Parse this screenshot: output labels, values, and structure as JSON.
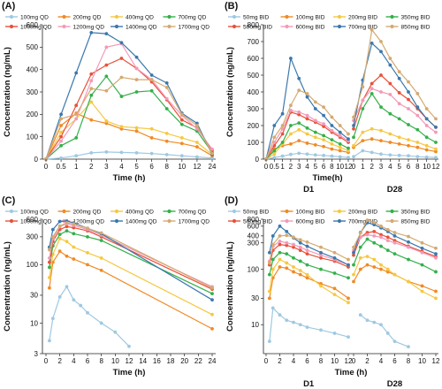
{
  "chart_data": [
    {
      "panel_label": "(A)",
      "type": "line",
      "scale": "linear",
      "xlabel": "Time (h)",
      "ylabel": "Concentration (ng/mL)",
      "ylim": [
        0,
        600
      ],
      "yticks": [
        0,
        100,
        200,
        300,
        400,
        500,
        600
      ],
      "xtick_labels": [
        "0",
        "0.5",
        "1",
        "2",
        "3",
        "4",
        "5",
        "6",
        "8",
        "10",
        "12",
        "24"
      ],
      "x_positions": [
        0,
        0.5,
        1,
        2,
        3,
        4,
        5,
        6,
        8,
        10,
        12,
        24
      ],
      "legend_columns": 4,
      "series": [
        {
          "name": "100mg QD",
          "color": "#9ec9e2",
          "values": [
            0,
            5,
            15,
            28,
            32,
            30,
            28,
            25,
            20,
            15,
            10,
            5
          ]
        },
        {
          "name": "200mg QD",
          "color": "#f08a24",
          "values": [
            0,
            150,
            205,
            175,
            160,
            135,
            125,
            95,
            80,
            70,
            55,
            15
          ]
        },
        {
          "name": "400mg QD",
          "color": "#f5c842",
          "values": [
            0,
            120,
            180,
            255,
            170,
            145,
            140,
            135,
            115,
            95,
            75,
            20
          ]
        },
        {
          "name": "700mg QD",
          "color": "#34b04a",
          "values": [
            0,
            60,
            95,
            285,
            370,
            280,
            300,
            305,
            225,
            155,
            125,
            30
          ]
        },
        {
          "name": "1000mg QD",
          "color": "#e8513a",
          "values": [
            0,
            100,
            240,
            380,
            420,
            450,
            405,
            345,
            265,
            175,
            140,
            40
          ]
        },
        {
          "name": "1200mg QD",
          "color": "#f29ab8",
          "values": [
            0,
            80,
            180,
            350,
            500,
            515,
            405,
            355,
            270,
            195,
            135,
            45
          ]
        },
        {
          "name": "1400mg QD",
          "color": "#3b78ad",
          "values": [
            0,
            200,
            385,
            565,
            560,
            520,
            455,
            375,
            340,
            205,
            160,
            20
          ]
        },
        {
          "name": "1700mg QD",
          "color": "#d4aa70",
          "values": [
            0,
            180,
            200,
            315,
            305,
            365,
            355,
            355,
            320,
            200,
            150,
            25
          ]
        }
      ]
    },
    {
      "panel_label": "(B)",
      "type": "line",
      "scale": "linear",
      "xlabel": "Time(h)",
      "ylabel": "Concentration (ng/mL)",
      "ylim": [
        0,
        800
      ],
      "yticks": [
        0,
        100,
        200,
        300,
        400,
        500,
        600,
        700,
        800
      ],
      "group_labels": [
        "D1",
        "D28"
      ],
      "xtick_labels": [
        "0",
        "0.5",
        "1",
        "2",
        "3",
        "4",
        "5",
        "6",
        "8",
        "10",
        "12",
        "0",
        "1",
        "2",
        "3",
        "4",
        "5",
        "6",
        "8",
        "10",
        "12"
      ],
      "legend_columns": 4,
      "series": [
        {
          "name": "50mg BID",
          "color": "#9ec9e2",
          "d1": [
            0,
            10,
            18,
            28,
            35,
            30,
            25,
            22,
            18,
            14,
            10
          ],
          "d28": [
            15,
            50,
            40,
            30,
            25,
            22,
            20,
            15,
            12,
            10
          ]
        },
        {
          "name": "100mg BID",
          "color": "#f08a24",
          "d1": [
            0,
            60,
            80,
            90,
            110,
            95,
            85,
            75,
            60,
            50,
            40
          ],
          "d28": [
            70,
            110,
            120,
            110,
            100,
            90,
            80,
            70,
            55,
            45
          ]
        },
        {
          "name": "200mg BID",
          "color": "#f5c842",
          "d1": [
            0,
            30,
            90,
            150,
            175,
            150,
            130,
            115,
            90,
            70,
            50
          ],
          "d28": [
            80,
            160,
            180,
            170,
            150,
            130,
            115,
            100,
            80,
            60
          ]
        },
        {
          "name": "350mg BID",
          "color": "#34b04a",
          "d1": [
            0,
            50,
            100,
            200,
            215,
            185,
            160,
            140,
            115,
            90,
            65
          ],
          "d28": [
            130,
            300,
            390,
            310,
            270,
            240,
            205,
            175,
            130,
            100
          ]
        },
        {
          "name": "500mg BID",
          "color": "#e8513a",
          "d1": [
            0,
            80,
            150,
            280,
            265,
            240,
            220,
            195,
            160,
            130,
            100
          ],
          "d28": [
            180,
            350,
            450,
            500,
            450,
            395,
            355,
            300,
            240,
            190
          ]
        },
        {
          "name": "600mg BID",
          "color": "#f29ab8",
          "d1": [
            0,
            100,
            180,
            290,
            280,
            260,
            230,
            210,
            170,
            140,
            110
          ],
          "d28": [
            230,
            350,
            420,
            400,
            385,
            330,
            300,
            260,
            200,
            160
          ]
        },
        {
          "name": "700mg BID",
          "color": "#3b78ad",
          "d1": [
            0,
            200,
            270,
            600,
            480,
            370,
            300,
            260,
            200,
            160,
            120
          ],
          "d28": [
            200,
            470,
            690,
            640,
            560,
            480,
            400,
            310,
            240,
            190
          ]
        },
        {
          "name": "850mg BID",
          "color": "#d4aa70",
          "d1": [
            0,
            130,
            200,
            320,
            410,
            390,
            340,
            310,
            250,
            200,
            150
          ],
          "d28": [
            250,
            430,
            770,
            700,
            600,
            520,
            460,
            390,
            300,
            240
          ]
        }
      ]
    },
    {
      "panel_label": "(C)",
      "type": "line",
      "scale": "log",
      "xlabel": "Time (h)",
      "ylabel": "Concentration (ng/mL)",
      "ylim": [
        3,
        600
      ],
      "yticks": [
        3,
        10,
        30,
        100,
        300,
        600
      ],
      "xlim": [
        0,
        24
      ],
      "xticks": [
        0,
        2,
        4,
        6,
        8,
        10,
        12,
        14,
        16,
        18,
        20,
        22,
        24
      ],
      "legend_columns": 4,
      "series": [
        {
          "name": "100mg QD",
          "color": "#9ec9e2",
          "x": [
            0.5,
            1,
            2,
            3,
            4,
            5,
            6,
            8,
            10,
            12
          ],
          "values": [
            5,
            12,
            28,
            42,
            25,
            20,
            15,
            10,
            7,
            4
          ]
        },
        {
          "name": "200mg QD",
          "color": "#f08a24",
          "x": [
            0.5,
            1,
            2,
            3,
            4,
            6,
            8,
            24
          ],
          "values": [
            40,
            110,
            170,
            140,
            125,
            100,
            80,
            8
          ]
        },
        {
          "name": "400mg QD",
          "color": "#f5c842",
          "x": [
            0.5,
            1,
            2,
            3,
            4,
            6,
            8,
            24
          ],
          "values": [
            60,
            150,
            280,
            250,
            200,
            160,
            130,
            14
          ]
        },
        {
          "name": "700mg QD",
          "color": "#34b04a",
          "x": [
            0.5,
            1,
            2,
            3,
            4,
            6,
            8,
            24
          ],
          "values": [
            90,
            210,
            330,
            380,
            340,
            300,
            260,
            32
          ]
        },
        {
          "name": "1000mg QD",
          "color": "#e8513a",
          "x": [
            0.5,
            1,
            2,
            3,
            4,
            6,
            8,
            24
          ],
          "values": [
            110,
            250,
            400,
            450,
            430,
            380,
            300,
            38
          ]
        },
        {
          "name": "1200mg QD",
          "color": "#f29ab8",
          "x": [
            0.5,
            1,
            2,
            3,
            4,
            6,
            8,
            24
          ],
          "values": [
            130,
            280,
            450,
            500,
            470,
            400,
            320,
            42
          ]
        },
        {
          "name": "1400mg QD",
          "color": "#3b78ad",
          "x": [
            0.5,
            1,
            2,
            3,
            4,
            6,
            8,
            24
          ],
          "values": [
            200,
            400,
            550,
            560,
            520,
            420,
            340,
            25
          ]
        },
        {
          "name": "1700mg QD",
          "color": "#d4aa70",
          "x": [
            0.5,
            1,
            2,
            3,
            4,
            6,
            8,
            24
          ],
          "values": [
            180,
            300,
            460,
            520,
            500,
            420,
            350,
            40
          ]
        }
      ]
    },
    {
      "panel_label": "(D)",
      "type": "line",
      "scale": "log",
      "xlabel": "Time (h)",
      "ylabel": "Concentration (ng/mL)",
      "ylim": [
        3,
        800
      ],
      "yticks": [
        10,
        30,
        100,
        300,
        400,
        600,
        800
      ],
      "group_labels": [
        "D1",
        "D28"
      ],
      "d1_xticks": [
        0,
        2,
        4,
        6,
        8,
        10,
        12
      ],
      "d28_xticks": [
        0,
        2,
        4,
        6,
        8,
        10,
        12
      ],
      "legend_columns": 4,
      "series": [
        {
          "name": "50mg BID",
          "color": "#9ec9e2",
          "d1_x": [
            0.5,
            1,
            2,
            3,
            4,
            5,
            6,
            8,
            10,
            12
          ],
          "d1": [
            5,
            20,
            15,
            12,
            11,
            10,
            9,
            8,
            7,
            6
          ],
          "d28_x": [
            1,
            2,
            3,
            4,
            5,
            6,
            8
          ],
          "d28": [
            15,
            12,
            11,
            10,
            7,
            5,
            4
          ]
        },
        {
          "name": "100mg BID",
          "color": "#f08a24",
          "d1_x": [
            0.5,
            1,
            2,
            3,
            4,
            5,
            6,
            8,
            10,
            12
          ],
          "d1": [
            30,
            70,
            110,
            105,
            90,
            80,
            70,
            55,
            45,
            30
          ],
          "d28_x": [
            0,
            1,
            2,
            3,
            4,
            5,
            6,
            8,
            10,
            12
          ],
          "d28": [
            60,
            100,
            120,
            110,
            100,
            90,
            80,
            60,
            50,
            40
          ]
        },
        {
          "name": "200mg BID",
          "color": "#f5c842",
          "d1_x": [
            0.5,
            1,
            2,
            3,
            4,
            5,
            6,
            8,
            10,
            12
          ],
          "d1": [
            40,
            100,
            150,
            130,
            110,
            95,
            80,
            50,
            35,
            25
          ],
          "d28_x": [
            0,
            1,
            2,
            3,
            4,
            5,
            6,
            8,
            10,
            12
          ],
          "d28": [
            80,
            160,
            170,
            150,
            120,
            100,
            80,
            60,
            40,
            30
          ]
        },
        {
          "name": "350mg BID",
          "color": "#34b04a",
          "d1_x": [
            0.5,
            1,
            2,
            3,
            4,
            5,
            6,
            8,
            10,
            12
          ],
          "d1": [
            80,
            150,
            200,
            190,
            160,
            140,
            120,
            100,
            85,
            70
          ],
          "d28_x": [
            0,
            1,
            2,
            3,
            4,
            5,
            6,
            8,
            10,
            12
          ],
          "d28": [
            120,
            250,
            350,
            300,
            260,
            220,
            190,
            150,
            120,
            90
          ]
        },
        {
          "name": "500mg BID",
          "color": "#e8513a",
          "d1_x": [
            0.5,
            1,
            2,
            3,
            4,
            5,
            6,
            8,
            10,
            12
          ],
          "d1": [
            120,
            220,
            280,
            270,
            250,
            220,
            190,
            160,
            140,
            110
          ],
          "d28_x": [
            0,
            1,
            2,
            3,
            4,
            5,
            6,
            8,
            10,
            12
          ],
          "d28": [
            180,
            380,
            460,
            480,
            420,
            380,
            330,
            260,
            210,
            170
          ]
        },
        {
          "name": "600mg BID",
          "color": "#f29ab8",
          "d1_x": [
            0.5,
            1,
            2,
            3,
            4,
            5,
            6,
            8,
            10,
            12
          ],
          "d1": [
            140,
            260,
            320,
            300,
            280,
            250,
            220,
            180,
            150,
            120
          ],
          "d28_x": [
            0,
            1,
            2,
            3,
            4,
            5,
            6,
            8,
            10,
            12
          ],
          "d28": [
            220,
            380,
            420,
            400,
            380,
            330,
            300,
            250,
            200,
            160
          ]
        },
        {
          "name": "700mg BID",
          "color": "#3b78ad",
          "d1_x": [
            0.5,
            1,
            2,
            3,
            4,
            5,
            6,
            8,
            10,
            12
          ],
          "d1": [
            200,
            400,
            600,
            480,
            370,
            300,
            260,
            200,
            160,
            120
          ],
          "d28_x": [
            0,
            1,
            2,
            3,
            4,
            5,
            6,
            8,
            10,
            12
          ],
          "d28": [
            200,
            460,
            690,
            640,
            560,
            480,
            400,
            310,
            240,
            190
          ]
        },
        {
          "name": "850mg BID",
          "color": "#d4aa70",
          "d1_x": [
            0.5,
            1,
            2,
            3,
            4,
            5,
            6,
            8,
            10,
            12
          ],
          "d1": [
            130,
            280,
            400,
            410,
            380,
            340,
            310,
            250,
            200,
            150
          ],
          "d28_x": [
            0,
            1,
            2,
            3,
            4,
            5,
            6,
            8,
            10,
            12
          ],
          "d28": [
            250,
            450,
            770,
            700,
            600,
            520,
            460,
            390,
            300,
            240
          ]
        }
      ]
    }
  ]
}
